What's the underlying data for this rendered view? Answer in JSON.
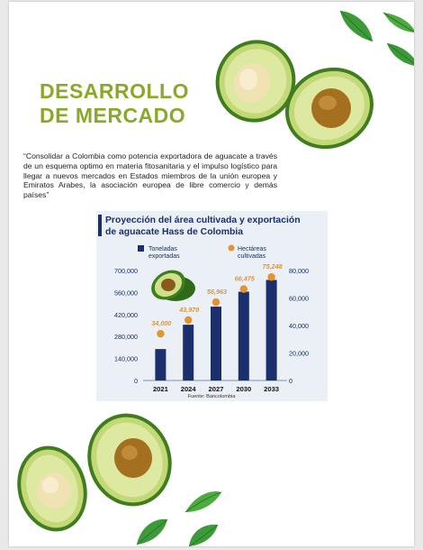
{
  "page": {
    "title_line1": "DESARROLLO",
    "title_line2": "DE MERCADO",
    "quote": "“Consolidar a Colombia como potencia exportadora de aguacate a través de un esquema optimo en materia fitosanitaria y el impulso logístico para llegar a nuevos mercados en Estados miembros de la unión europea y Emiratos Arabes, la asociación europea de libre comercio y demás países”"
  },
  "colors": {
    "title_green": "#8aa829",
    "bar_navy": "#1a2f6b",
    "dot_orange": "#e8922e",
    "info_bg": "#eaf0f6"
  },
  "chart_data": {
    "type": "bar",
    "title_line1": "Proyección del área cultivada y exportación",
    "title_line2": "de aguacate Hass de Colombia",
    "categories": [
      "2021",
      "2024",
      "2027",
      "2030",
      "2033"
    ],
    "series": [
      {
        "name": "Toneladas exportadas",
        "name_line1": "Toneladas",
        "name_line2": "exportadas",
        "type": "bar",
        "axis": "left",
        "values": [
          200000,
          355000,
          470000,
          565000,
          640000
        ]
      },
      {
        "name": "Hectáreas cultivadas",
        "name_line1": "Hectáreas",
        "name_line2": "cultivadas",
        "type": "scatter",
        "axis": "right",
        "values": [
          34000,
          43970,
          56963,
          66475,
          75248
        ],
        "labels": [
          "34,000",
          "43,970",
          "56,963",
          "66,475",
          "75,248"
        ]
      }
    ],
    "y_left": {
      "ticks": [
        0,
        140000,
        280000,
        420000,
        560000,
        700000
      ],
      "tick_labels": [
        "0",
        "140,000",
        "280,000",
        "420,000",
        "560,000",
        "700,000"
      ],
      "ylim": [
        0,
        700000
      ]
    },
    "y_right": {
      "ticks": [
        0,
        20000,
        40000,
        60000,
        80000
      ],
      "tick_labels": [
        "0",
        "20,000",
        "40,000",
        "60,000",
        "80,000"
      ],
      "ylim": [
        0,
        80000
      ]
    },
    "legend": "top-left",
    "source": "Fuente: Bancolombia"
  },
  "icons": [
    "avocado-half-icon",
    "avocado-pit-icon",
    "leaf-icon"
  ]
}
